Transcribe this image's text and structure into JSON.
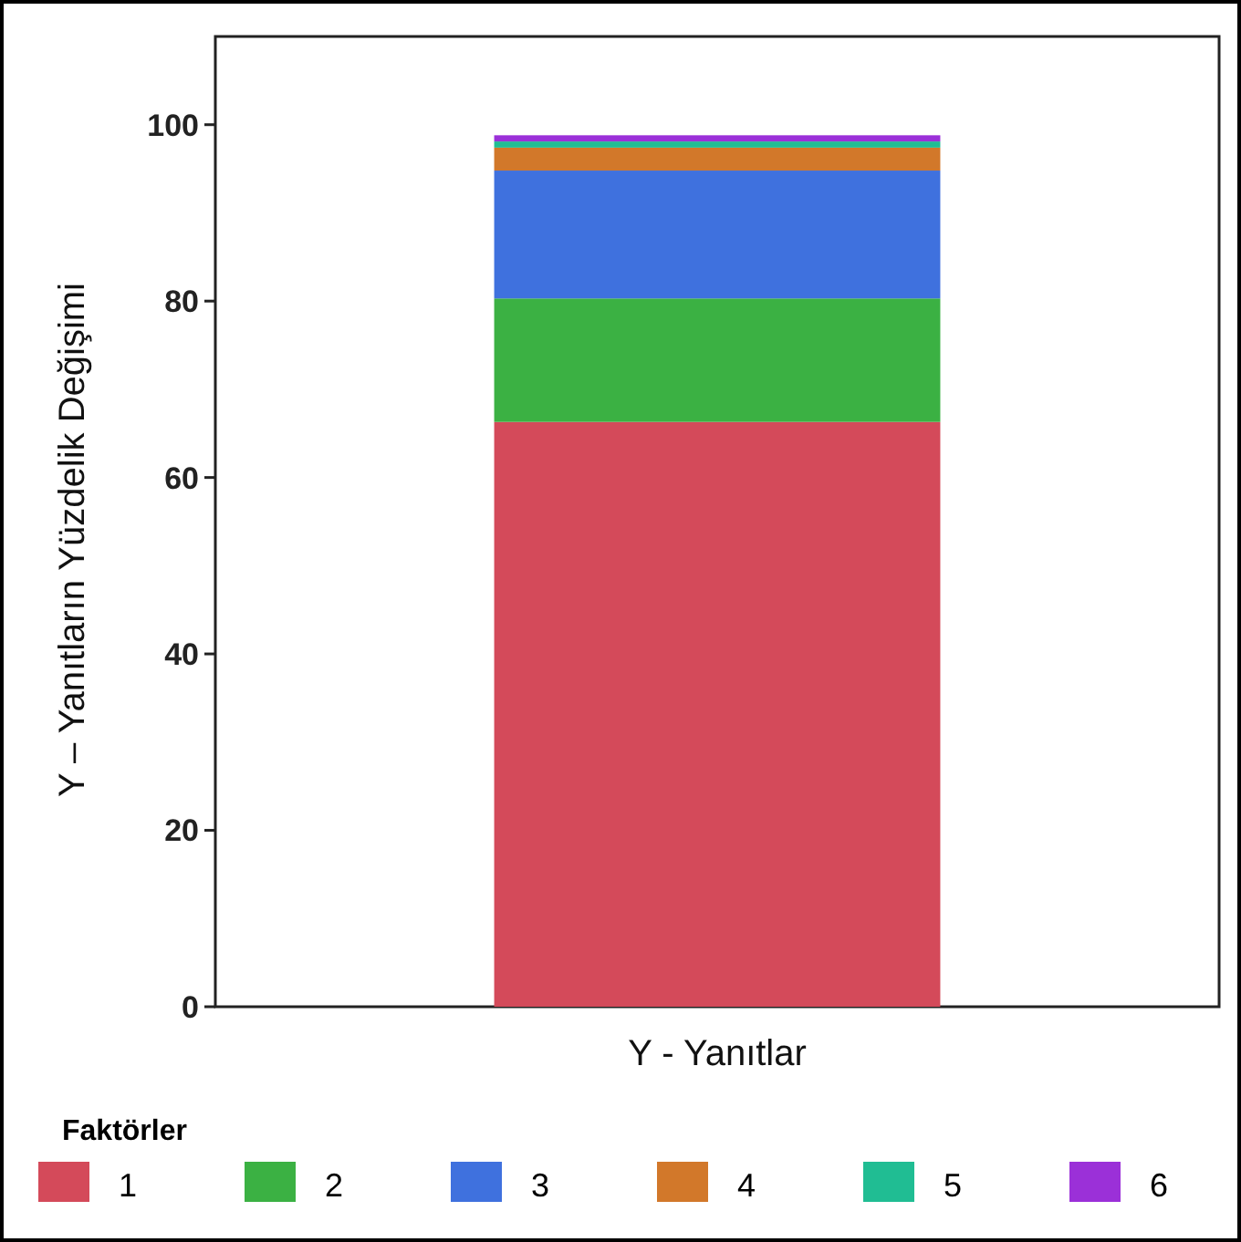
{
  "chart_data": {
    "type": "bar",
    "stacked": true,
    "xlabel": "Y - Yanıtlar",
    "ylabel": "Y – Yanıtların Yüzdelik Değişimi",
    "legend_title": "Faktörler",
    "legend": "bottom",
    "categories": [
      null
    ],
    "series": [
      {
        "name": "1",
        "color": "#d44a5a",
        "values": [
          66.3
        ]
      },
      {
        "name": "2",
        "color": "#3bb143",
        "values": [
          14.0
        ]
      },
      {
        "name": "3",
        "color": "#3f71de",
        "values": [
          14.5
        ]
      },
      {
        "name": "4",
        "color": "#d2782a",
        "values": [
          2.6
        ]
      },
      {
        "name": "5",
        "color": "#20bd93",
        "values": [
          0.7
        ]
      },
      {
        "name": "6",
        "color": "#9b30d8",
        "values": [
          0.7
        ]
      }
    ],
    "ylim": [
      0,
      110
    ],
    "yticks": [
      0,
      20,
      40,
      60,
      80,
      100
    ],
    "grid": false
  }
}
